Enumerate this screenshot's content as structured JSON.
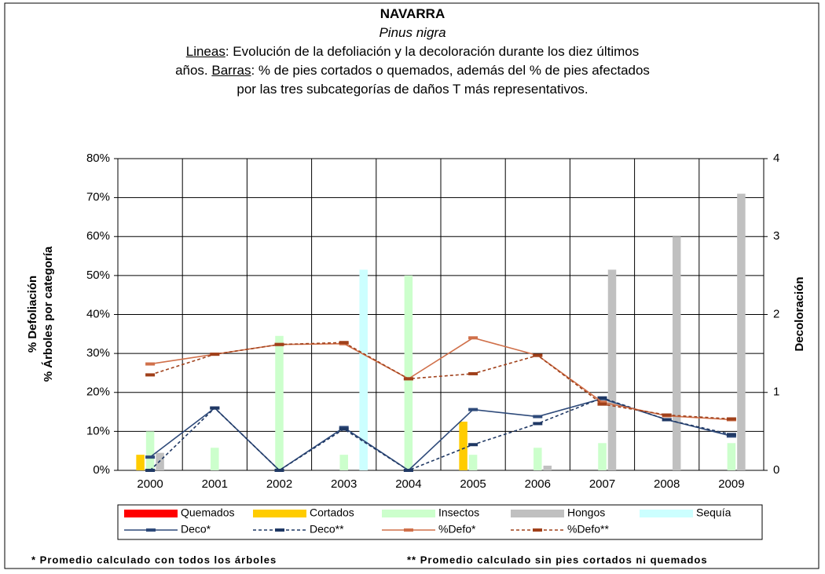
{
  "chart_data": {
    "type": "combo",
    "title": "NAVARRA",
    "subtitle": "Pinus nigra",
    "description": [
      {
        "label": "Lineas",
        "text": ": Evolución de la defoliación y la decoloración durante los diez últimos años. "
      },
      {
        "label": "Barras",
        "text": ": % de pies cortados o quemados, además del % de pies afectados por las tres subcategorías de daños T más representativos."
      }
    ],
    "y_label": [
      "% Defoliación",
      "% Árboles por categoría"
    ],
    "y2_label": "Decoloración",
    "categories": [
      "2000",
      "2001",
      "2002",
      "2003",
      "2004",
      "2005",
      "2006",
      "2007",
      "2008",
      "2009"
    ],
    "ylim": [
      0,
      80
    ],
    "yticks": [
      {
        "value": 0,
        "label": "0%"
      },
      {
        "value": 10,
        "label": "10%"
      },
      {
        "value": 20,
        "label": "20%"
      },
      {
        "value": 30,
        "label": "30%"
      },
      {
        "value": 40,
        "label": "40%"
      },
      {
        "value": 50,
        "label": "50%"
      },
      {
        "value": 60,
        "label": "60%"
      },
      {
        "value": 70,
        "label": "70%"
      },
      {
        "value": 80,
        "label": "80%"
      }
    ],
    "y2lim": [
      0,
      4
    ],
    "y2ticks": [
      0,
      1,
      2,
      3,
      4
    ],
    "grid": true,
    "series": [
      {
        "name": "Quemados",
        "kind": "bar",
        "color": "#ff0000",
        "values": [
          0,
          0,
          0,
          0,
          0,
          0,
          0,
          0,
          0,
          0
        ]
      },
      {
        "name": "Cortados",
        "kind": "bar",
        "color": "#ffcc00",
        "values": [
          4,
          0,
          0,
          0,
          0,
          12.5,
          0,
          0,
          0,
          0
        ]
      },
      {
        "name": "Insectos",
        "kind": "bar",
        "color": "#ccffcc",
        "values": [
          10,
          5.8,
          34.5,
          4,
          50,
          4,
          5.8,
          7,
          0,
          7
        ]
      },
      {
        "name": "Hongos",
        "kind": "bar",
        "color": "#c0c0c0",
        "values": [
          4.5,
          0,
          0,
          0,
          0,
          0,
          1.2,
          51.5,
          60,
          71
        ]
      },
      {
        "name": "Sequía",
        "kind": "bar",
        "color": "#ccffff",
        "values": [
          0,
          0,
          0,
          51.5,
          0,
          0,
          0,
          0,
          0,
          0
        ]
      },
      {
        "name": "Deco*",
        "kind": "line",
        "axis": "y2",
        "color": "#2e4a7a",
        "dash": false,
        "values": [
          0.17,
          0.8,
          0,
          0.55,
          0,
          0.78,
          0.69,
          0.92,
          0.65,
          0.44
        ]
      },
      {
        "name": "Deco**",
        "kind": "line",
        "axis": "y2",
        "color": "#1f3864",
        "dash": true,
        "values": [
          0,
          0.8,
          0,
          0.53,
          0,
          0.33,
          0.6,
          0.93,
          0.65,
          0.46
        ]
      },
      {
        "name": "%Defo*",
        "kind": "line",
        "color": "#d0704a",
        "dash": false,
        "values": [
          27.3,
          29.8,
          32.3,
          32.5,
          23.5,
          34,
          29.5,
          17.5,
          14,
          13
        ]
      },
      {
        "name": "%Defo**",
        "kind": "line",
        "color": "#a0401a",
        "dash": true,
        "values": [
          24.5,
          29.8,
          32.3,
          32.8,
          23.5,
          24.8,
          29.5,
          17,
          14.2,
          13.2
        ]
      }
    ],
    "footnotes": [
      "* Promedio calculado con todos los árboles",
      "** Promedio calculado sin pies cortados ni quemados"
    ]
  }
}
